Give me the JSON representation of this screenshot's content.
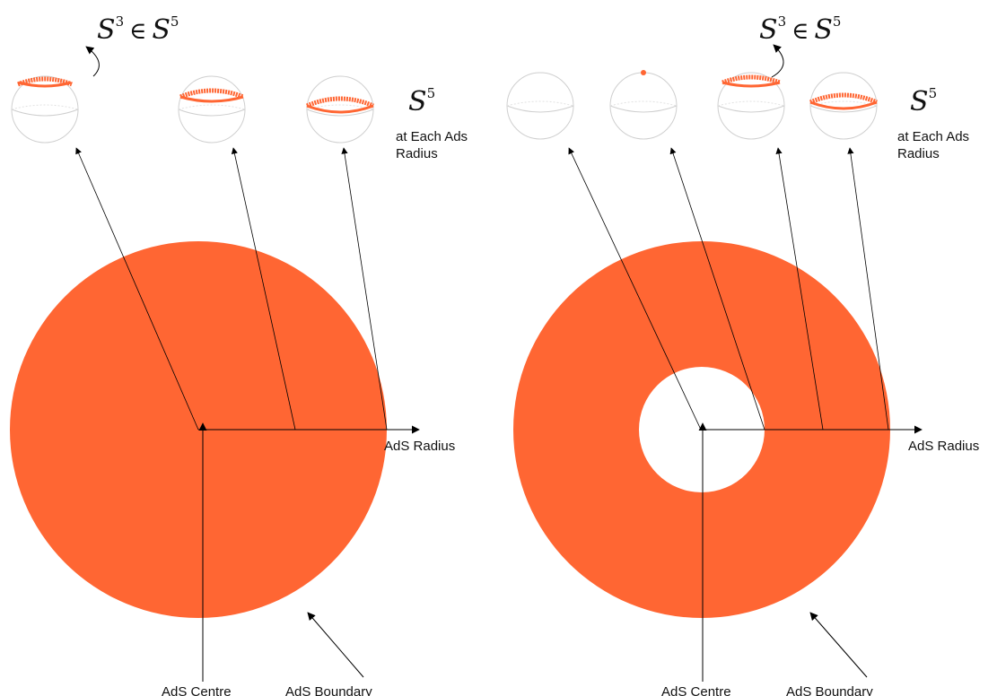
{
  "colors": {
    "fill": "#FF6633",
    "line": "#000000",
    "sphere": "#cfcfcf"
  },
  "left_panel": {
    "embedding": {
      "base": "S",
      "sup_a": "3",
      "relation": "∈",
      "base2": "S",
      "sup_b": "5"
    },
    "sphere_label": {
      "base": "S",
      "sup": "5"
    },
    "sphere_caption": [
      "at Each Ads",
      "Radius"
    ],
    "radius_label": "AdS Radius",
    "centre_label": "AdS Centre",
    "boundary_label": "AdS Boundary"
  },
  "right_panel": {
    "embedding": {
      "base": "S",
      "sup_a": "3",
      "relation": "∈",
      "base2": "S",
      "sup_b": "5"
    },
    "sphere_label": {
      "base": "S",
      "sup": "5"
    },
    "sphere_caption": [
      "at Each Ads",
      "Radius"
    ],
    "radius_label": "AdS Radius",
    "centre_label": "AdS Centre",
    "boundary_label": "AdS Boundary"
  }
}
